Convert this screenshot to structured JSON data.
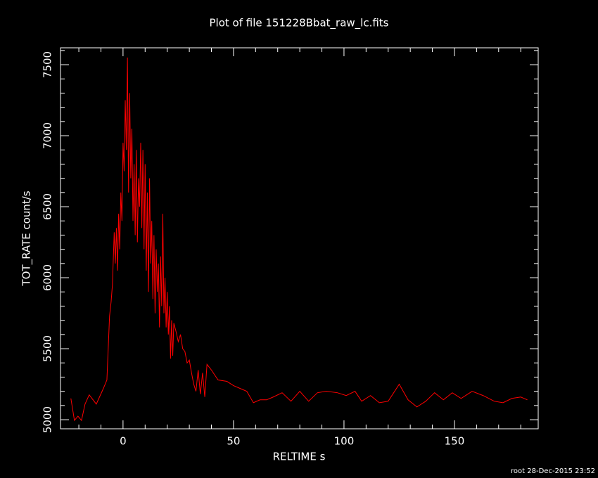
{
  "chart_data": {
    "type": "line",
    "title": "Plot of file 151228Bbat_raw_lc.fits",
    "xlabel": "RELTIME  s",
    "ylabel": "TOT_RATE  count/s",
    "footer": "root 28-Dec-2015 23:52",
    "x": [
      -23.6,
      -22,
      -20.4,
      -18.8,
      -17.2,
      -15.3,
      -12.1,
      -8.9,
      -7.3,
      -6.1,
      -5.4,
      -4.8,
      -4,
      -3.5,
      -3,
      -2.5,
      -2,
      -1.5,
      -1,
      -0.5,
      0,
      0.5,
      1,
      1.5,
      2,
      2.5,
      3,
      3.5,
      4,
      4.5,
      5,
      5.5,
      6,
      6.5,
      7,
      7.5,
      8,
      8.5,
      9,
      9.5,
      10,
      10.5,
      11,
      11.5,
      12,
      12.5,
      13,
      13.5,
      14,
      14.5,
      15,
      15.5,
      16,
      16.5,
      17,
      17.5,
      18,
      18.5,
      19,
      19.5,
      20,
      20.5,
      21,
      21.5,
      22,
      22.5,
      23,
      24,
      25,
      26,
      27,
      28,
      29,
      30,
      31,
      32,
      33,
      34,
      35,
      36,
      37,
      38,
      40,
      43,
      47,
      50,
      53,
      56,
      59,
      62,
      65,
      68,
      72,
      76,
      80,
      84,
      88,
      92,
      97,
      101,
      105,
      108,
      112,
      116,
      120,
      125,
      129,
      133,
      137,
      141,
      145,
      149,
      153,
      158,
      163,
      168,
      172,
      176,
      180,
      183
    ],
    "series": [
      {
        "name": "TOT_RATE",
        "color": "#ff0000",
        "values": [
          5150,
          4995,
          5025,
          4995,
          5110,
          5175,
          5110,
          5220,
          5280,
          5730,
          5830,
          5950,
          6320,
          6100,
          6350,
          6050,
          6450,
          6200,
          6600,
          6400,
          6950,
          6750,
          7250,
          6900,
          7550,
          6600,
          7300,
          6700,
          7050,
          6400,
          6800,
          6300,
          6900,
          6250,
          6700,
          6500,
          6950,
          6350,
          6900,
          6200,
          6800,
          6050,
          6600,
          5900,
          6700,
          6100,
          6400,
          5850,
          6300,
          5750,
          6200,
          5900,
          6100,
          5650,
          6150,
          5800,
          6450,
          5750,
          6000,
          5650,
          5900,
          5600,
          5800,
          5430,
          5700,
          5450,
          5680,
          5620,
          5550,
          5600,
          5500,
          5480,
          5400,
          5420,
          5330,
          5250,
          5200,
          5350,
          5180,
          5330,
          5160,
          5390,
          5350,
          5280,
          5270,
          5240,
          5220,
          5200,
          5120,
          5140,
          5140,
          5160,
          5190,
          5130,
          5200,
          5130,
          5190,
          5200,
          5190,
          5170,
          5200,
          5130,
          5170,
          5120,
          5130,
          5250,
          5140,
          5090,
          5130,
          5190,
          5140,
          5190,
          5150,
          5200,
          5170,
          5130,
          5120,
          5150,
          5160,
          5140
        ]
      }
    ],
    "xlim": [
      -28.3,
      187.9
    ],
    "ylim": [
      4936,
      7619
    ],
    "xticks": [
      0,
      50,
      100,
      150
    ],
    "yticks": [
      5000,
      5500,
      6000,
      6500,
      7000,
      7500
    ],
    "xminorticks": [
      -20,
      -10,
      10,
      20,
      30,
      40,
      60,
      70,
      80,
      90,
      110,
      120,
      130,
      140,
      160,
      170,
      180
    ],
    "yminorticks": [
      5100,
      5200,
      5300,
      5400,
      5600,
      5700,
      5800,
      5900,
      6100,
      6200,
      6300,
      6400,
      6600,
      6700,
      6800,
      6900,
      7100,
      7200,
      7300,
      7400,
      7600
    ]
  }
}
